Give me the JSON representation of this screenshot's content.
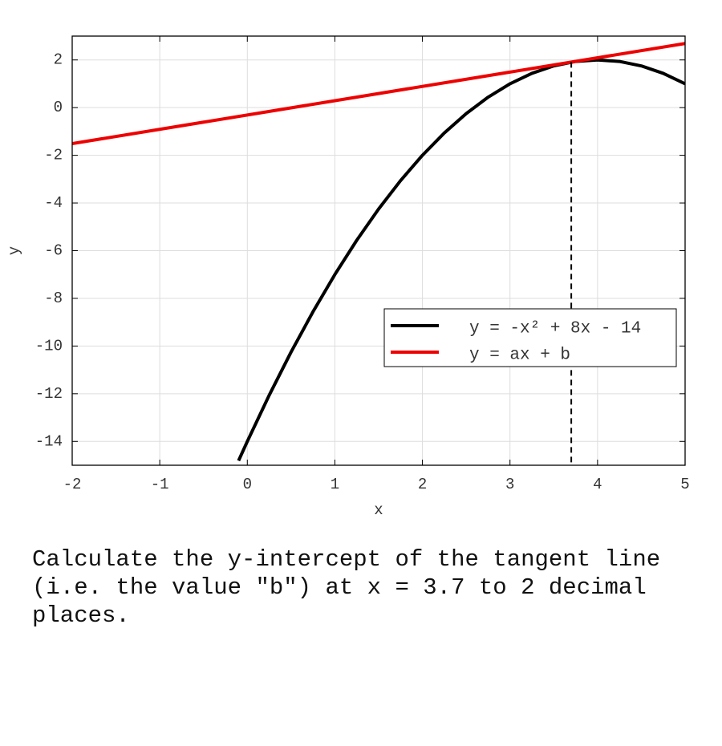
{
  "chart_data": {
    "type": "line",
    "xlabel": "x",
    "ylabel": "y",
    "xlim": [
      -2,
      5
    ],
    "ylim": [
      -15,
      3
    ],
    "xticks": [
      -2,
      -1,
      0,
      1,
      2,
      3,
      4,
      5
    ],
    "yticks": [
      -14,
      -12,
      -10,
      -8,
      -6,
      -4,
      -2,
      0,
      2
    ],
    "grid": true,
    "legend": "lower right",
    "series": [
      {
        "name": "y = -x² + 8x - 14",
        "color": "#000000",
        "x": [
          -0.1,
          0,
          0.25,
          0.5,
          0.75,
          1,
          1.25,
          1.5,
          1.75,
          2,
          2.25,
          2.5,
          2.75,
          3,
          3.25,
          3.5,
          3.75,
          4,
          4.25,
          4.5,
          4.75,
          5
        ],
        "values": [
          -14.81,
          -14,
          -12.0625,
          -10.25,
          -8.5625,
          -7,
          -5.5625,
          -4.25,
          -3.0625,
          -2,
          -1.0625,
          -0.25,
          0.4375,
          1,
          1.4375,
          1.75,
          1.9375,
          2,
          1.9375,
          1.75,
          1.4375,
          1
        ]
      },
      {
        "name": "y = ax + b",
        "color": "#ee0000",
        "x": [
          -2,
          5
        ],
        "values": [
          -1.51,
          2.69
        ]
      }
    ],
    "vline": {
      "x": 3.7,
      "y": 1.91
    }
  },
  "question": "Calculate the y-intercept of the tangent line (i.e. the value \"b\") at x = 3.7 to 2 decimal places."
}
